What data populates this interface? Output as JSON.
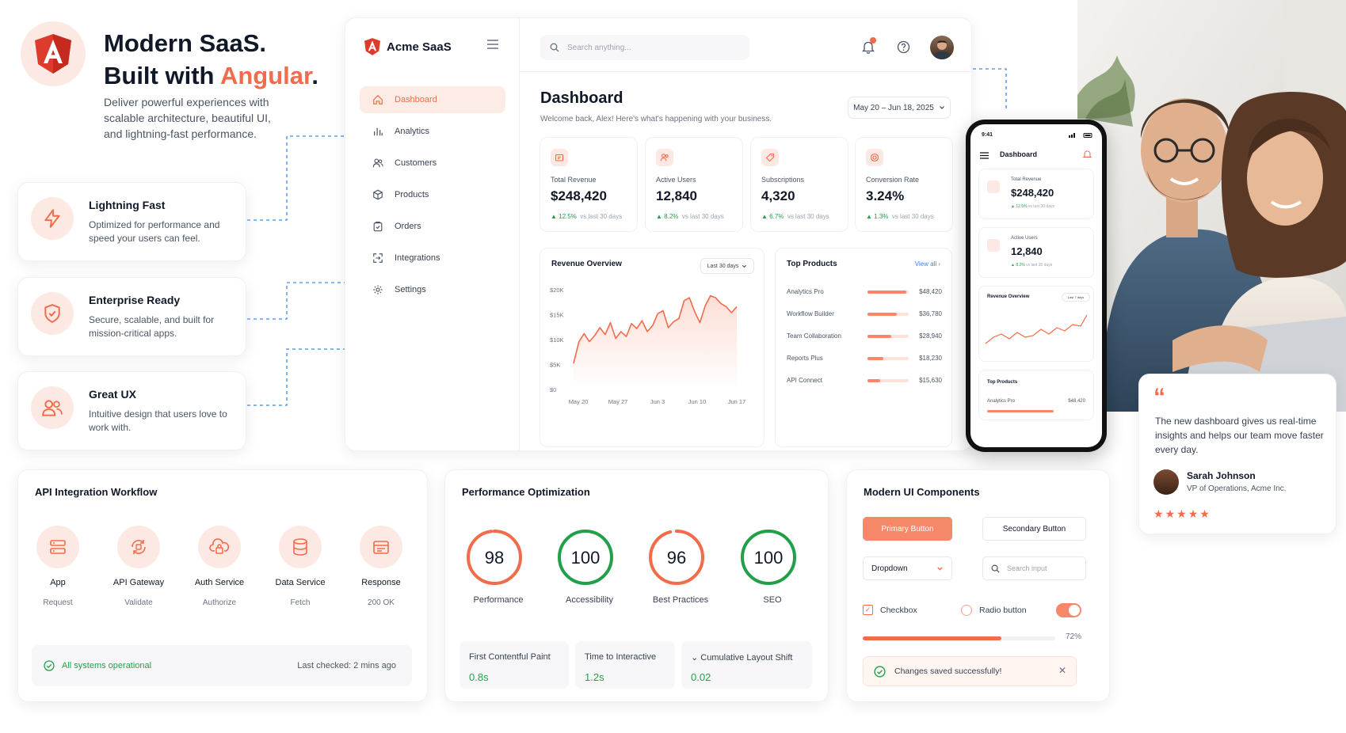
{
  "hero": {
    "title_line1": "Modern SaaS.",
    "title_prefix": "Built with ",
    "title_accent": "Angular",
    "title_suffix": ".",
    "description": "Deliver powerful experiences with scalable architecture, beautiful UI, and lightning-fast performance.",
    "features": [
      {
        "title": "Lightning Fast",
        "desc": "Optimized for performance and speed your users can feel.",
        "icon": "lightning-icon"
      },
      {
        "title": "Enterprise Ready",
        "desc": "Secure, scalable, and built for mission-critical apps.",
        "icon": "shield-check-icon"
      },
      {
        "title": "Great UX",
        "desc": "Intuitive design that users love to work with.",
        "icon": "users-icon"
      }
    ]
  },
  "colors": {
    "accent": "#f26b4a",
    "accent_soft": "#fde9e3",
    "success": "#22a049",
    "link": "#5aa0f2"
  },
  "dashboard": {
    "brand": "Acme SaaS",
    "search_placeholder": "Search anything...",
    "nav": [
      {
        "label": "Dashboard",
        "icon": "home-icon",
        "active": true
      },
      {
        "label": "Analytics",
        "icon": "bar-chart-icon"
      },
      {
        "label": "Customers",
        "icon": "users-icon"
      },
      {
        "label": "Products",
        "icon": "box-icon"
      },
      {
        "label": "Orders",
        "icon": "clipboard-icon"
      },
      {
        "label": "Integrations",
        "icon": "integrations-icon"
      },
      {
        "label": "Settings",
        "icon": "gear-icon"
      }
    ],
    "title": "Dashboard",
    "subtitle": "Welcome back, Alex! Here's what's happening with your business.",
    "date_range": "May 20 – Jun 18, 2025",
    "kpis": [
      {
        "label": "Total Revenue",
        "value": "$248,420",
        "change": "12.5%",
        "period": "vs last 30 days",
        "icon": "wallet-icon"
      },
      {
        "label": "Active Users",
        "value": "12,840",
        "change": "8.2%",
        "period": "vs last 30 days",
        "icon": "users-icon"
      },
      {
        "label": "Subscriptions",
        "value": "4,320",
        "change": "6.7%",
        "period": "vs last 30 days",
        "icon": "tag-icon"
      },
      {
        "label": "Conversion Rate",
        "value": "3.24%",
        "change": "1.3%",
        "period": "vs last 30 days",
        "icon": "target-icon"
      }
    ],
    "revenue": {
      "title": "Revenue Overview",
      "filter": "Last 30 days",
      "y_ticks": [
        "$20K",
        "$15K",
        "$10K",
        "$5K",
        "$0"
      ],
      "x_ticks": [
        "May 20",
        "May 27",
        "Jun 3",
        "Jun 10",
        "Jun 17"
      ],
      "values": [
        5.2,
        9.5,
        11.2,
        9.6,
        10.8,
        12.4,
        11,
        13.4,
        10.2,
        11.6,
        10.6,
        13.2,
        12.2,
        13.8,
        11.6,
        12.8,
        15.2,
        15.8,
        12.4,
        13.6,
        14.2,
        17.8,
        18.4,
        15.6,
        13.4,
        16.8,
        18.8,
        18.4,
        17.2,
        16.6,
        15.4,
        16.6
      ]
    },
    "top_products": {
      "title": "Top Products",
      "view_all": "View all",
      "items": [
        {
          "name": "Analytics Pro",
          "value": "$48,420",
          "share": 0.95
        },
        {
          "name": "Workflow Builder",
          "value": "$36,780",
          "share": 0.72
        },
        {
          "name": "Team Collaboration",
          "value": "$28,940",
          "share": 0.57
        },
        {
          "name": "Reports Plus",
          "value": "$18,230",
          "share": 0.38
        },
        {
          "name": "API Connect",
          "value": "$15,630",
          "share": 0.31
        }
      ]
    }
  },
  "phone": {
    "time": "9:41",
    "title": "Dashboard",
    "kpi1": {
      "label": "Total Revenue",
      "value": "$248,420",
      "change": "12.5%",
      "period": "vs last 30 days"
    },
    "kpi2": {
      "label": "Active Users",
      "value": "12,840",
      "change": "8.2%",
      "period": "vs last 30 days"
    },
    "chart_title": "Revenue Overview",
    "chart_filter": "Last 7 days",
    "top_title": "Top Products",
    "top_item": "Analytics Pro",
    "top_value": "$48,420"
  },
  "testimonial": {
    "quote": "The new dashboard gives us real-time insights and helps our team move faster every day.",
    "name": "Sarah Johnson",
    "role": "VP of Operations, Acme Inc.",
    "rating": 5
  },
  "api": {
    "title": "API Integration Workflow",
    "steps": [
      {
        "name": "App",
        "sub": "Request",
        "icon": "server-icon"
      },
      {
        "name": "API Gateway",
        "sub": "Validate",
        "icon": "gateway-icon"
      },
      {
        "name": "Auth Service",
        "sub": "Authorize",
        "icon": "cloud-lock-icon"
      },
      {
        "name": "Data Service",
        "sub": "Fetch",
        "icon": "database-icon"
      },
      {
        "name": "Response",
        "sub": "200 OK",
        "icon": "response-icon"
      }
    ],
    "status": "All systems operational",
    "last_checked": "Last checked: 2 mins ago"
  },
  "perf": {
    "title": "Performance Optimization",
    "scores": [
      {
        "value": 98,
        "label": "Performance",
        "color": "#f26b4a"
      },
      {
        "value": 100,
        "label": "Accessibility",
        "color": "#22a049"
      },
      {
        "value": 96,
        "label": "Best Practices",
        "color": "#f26b4a"
      },
      {
        "value": 100,
        "label": "SEO",
        "color": "#22a049"
      }
    ],
    "metrics": [
      {
        "label": "First Contentful Paint",
        "value": "0.8s"
      },
      {
        "label": "Time to Interactive",
        "value": "1.2s"
      },
      {
        "label": "Cumulative Layout Shift",
        "value": "0.02"
      }
    ]
  },
  "ui": {
    "title": "Modern UI Components",
    "primary": "Primary Button",
    "secondary": "Secondary Button",
    "dropdown": "Dropdown",
    "search_placeholder": "Search input",
    "checkbox": "Checkbox",
    "radio": "Radio button",
    "progress": 0.72,
    "progress_label": "72%",
    "toast": "Changes saved successfully!"
  }
}
